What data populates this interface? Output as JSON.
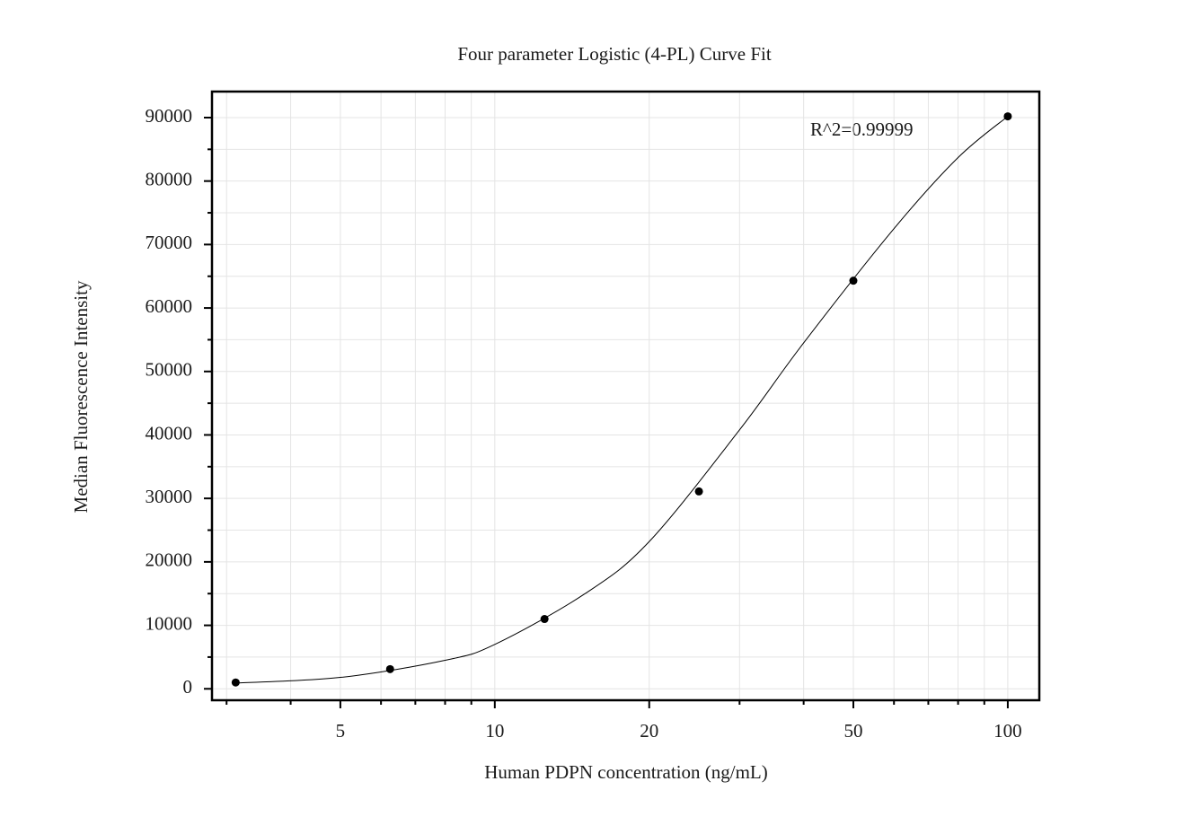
{
  "chart_data": {
    "type": "scatter",
    "title": "Four parameter Logistic (4-PL) Curve Fit",
    "x_label": "Human PDPN concentration (ng/mL)",
    "y_label": "Median Fluorescence Intensity",
    "annotation": "R^2=0.99999",
    "xscale": "log",
    "grid": true,
    "xlim": [
      2.81,
      115.2
    ],
    "ylim": [
      -1800,
      94100
    ],
    "xticks": [
      5,
      10,
      20,
      50,
      100
    ],
    "xminorticks": [
      3,
      4,
      6,
      7,
      8,
      9,
      30,
      40,
      60,
      70,
      80,
      90
    ],
    "yticks": [
      0,
      10000,
      20000,
      30000,
      40000,
      50000,
      60000,
      70000,
      80000,
      90000
    ],
    "yminorticks": [
      5000,
      15000,
      25000,
      35000,
      45000,
      55000,
      65000,
      75000,
      85000
    ],
    "series": [
      {
        "kind": "points",
        "color": "#000000",
        "x": [
          3.125,
          6.25,
          12.5,
          25,
          50,
          100
        ],
        "values": [
          1000,
          3100,
          11000,
          31100,
          64300,
          90200
        ]
      },
      {
        "kind": "curve",
        "color": "#000000",
        "x": [
          3.125,
          5,
          8,
          10,
          15,
          20,
          30,
          40,
          60,
          80,
          100
        ],
        "values": [
          900,
          1800,
          4500,
          7000,
          15000,
          23200,
          40800,
          54500,
          72500,
          83700,
          90200
        ]
      }
    ]
  }
}
